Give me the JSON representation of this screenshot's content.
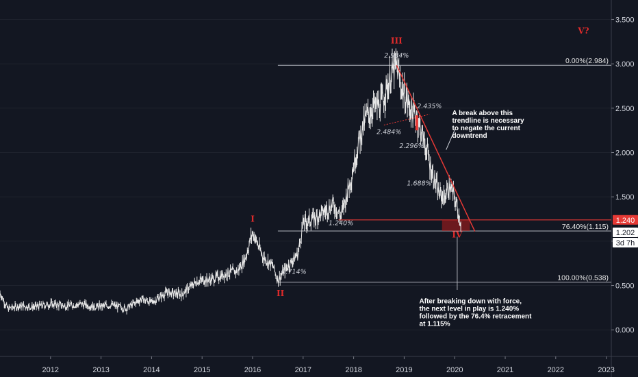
{
  "chart_data": {
    "type": "line",
    "x_range": [
      2011.0,
      2023.1
    ],
    "y_range": [
      -0.3,
      3.72
    ],
    "x_ticks": [
      {
        "x": 2012,
        "label": "2012"
      },
      {
        "x": 2013,
        "label": "2013"
      },
      {
        "x": 2014,
        "label": "2014"
      },
      {
        "x": 2015,
        "label": "2015"
      },
      {
        "x": 2016,
        "label": "2016"
      },
      {
        "x": 2017,
        "label": "2017"
      },
      {
        "x": 2018,
        "label": "2018"
      },
      {
        "x": 2019,
        "label": "2019"
      },
      {
        "x": 2020,
        "label": "2020"
      },
      {
        "x": 2021,
        "label": "2021"
      },
      {
        "x": 2022,
        "label": "2022"
      },
      {
        "x": 2023,
        "label": "2023"
      }
    ],
    "y_ticks": [
      {
        "y": 3.5,
        "label": "3.500"
      },
      {
        "y": 3.0,
        "label": "3.000"
      },
      {
        "y": 2.5,
        "label": "2.500"
      },
      {
        "y": 2.0,
        "label": "2.000"
      },
      {
        "y": 1.5,
        "label": "1.500"
      },
      {
        "y": 1.0,
        "label": "1.000"
      },
      {
        "y": 0.5,
        "label": "0.500"
      },
      {
        "y": 0.0,
        "label": "0.000"
      }
    ],
    "price_path": [
      [
        2011.0,
        0.42
      ],
      [
        2011.15,
        0.24
      ],
      [
        2011.4,
        0.27
      ],
      [
        2011.7,
        0.26
      ],
      [
        2012.0,
        0.29
      ],
      [
        2012.3,
        0.27
      ],
      [
        2012.6,
        0.29
      ],
      [
        2012.9,
        0.26
      ],
      [
        2013.2,
        0.28
      ],
      [
        2013.5,
        0.24
      ],
      [
        2013.8,
        0.35
      ],
      [
        2014.0,
        0.31
      ],
      [
        2014.3,
        0.42
      ],
      [
        2014.6,
        0.4
      ],
      [
        2014.9,
        0.55
      ],
      [
        2015.2,
        0.57
      ],
      [
        2015.5,
        0.64
      ],
      [
        2015.7,
        0.66
      ],
      [
        2015.85,
        0.8
      ],
      [
        2016.0,
        1.1
      ],
      [
        2016.2,
        0.83
      ],
      [
        2016.4,
        0.72
      ],
      [
        2016.5,
        0.56
      ],
      [
        2016.7,
        0.72
      ],
      [
        2016.9,
        0.86
      ],
      [
        2017.0,
        1.2
      ],
      [
        2017.3,
        1.28
      ],
      [
        2017.6,
        1.42
      ],
      [
        2017.75,
        1.28
      ],
      [
        2017.95,
        1.72
      ],
      [
        2018.1,
        2.12
      ],
      [
        2018.25,
        2.4
      ],
      [
        2018.4,
        2.51
      ],
      [
        2018.55,
        2.55
      ],
      [
        2018.75,
        2.88
      ],
      [
        2018.85,
        2.98
      ],
      [
        2018.95,
        2.74
      ],
      [
        2019.1,
        2.52
      ],
      [
        2019.25,
        2.38
      ],
      [
        2019.35,
        2.22
      ],
      [
        2019.45,
        2.02
      ],
      [
        2019.55,
        1.78
      ],
      [
        2019.7,
        1.52
      ],
      [
        2019.8,
        1.5
      ],
      [
        2019.9,
        1.62
      ],
      [
        2020.0,
        1.48
      ],
      [
        2020.05,
        1.38
      ],
      [
        2020.12,
        1.22
      ]
    ],
    "fib_levels": [
      {
        "y": 2.984,
        "label": "0.00%(2.984)"
      },
      {
        "y": 1.115,
        "label": "76.40%(1.115)"
      },
      {
        "y": 0.538,
        "label": "100.00%(0.538)"
      }
    ],
    "support_level": {
      "y": 1.24
    },
    "trendline": {
      "start": [
        2018.85,
        2.984
      ],
      "end": [
        2020.4,
        1.11
      ]
    },
    "dotted_line": {
      "start": [
        2018.6,
        2.31
      ],
      "end": [
        2019.5,
        2.43
      ]
    },
    "annotations": [
      {
        "x": 2018.85,
        "y": 3.07,
        "text": "2.984%"
      },
      {
        "x": 2019.5,
        "y": 2.5,
        "text": "2.435%"
      },
      {
        "x": 2018.7,
        "y": 2.21,
        "text": "2.484%"
      },
      {
        "x": 2019.15,
        "y": 2.05,
        "text": "2.296%"
      },
      {
        "x": 2019.3,
        "y": 1.63,
        "text": "1.688%"
      },
      {
        "x": 2017.75,
        "y": 1.18,
        "text": "1.240%"
      },
      {
        "x": 2016.82,
        "y": 0.63,
        "text": "0.714%"
      }
    ],
    "wave_labels": [
      {
        "x": 2016.0,
        "y": 1.22,
        "text": "I"
      },
      {
        "x": 2016.55,
        "y": 0.38,
        "text": "II"
      },
      {
        "x": 2018.85,
        "y": 3.23,
        "text": "III"
      },
      {
        "x": 2020.05,
        "y": 1.04,
        "text": "IV"
      },
      {
        "x": 2022.55,
        "y": 3.34,
        "text": "V?"
      }
    ],
    "notes": [
      {
        "x": 2019.95,
        "y": 2.42,
        "lines": [
          "A break above this",
          "trendline is necessary",
          "to negate the current",
          "downtrend"
        ]
      },
      {
        "x": 2019.3,
        "y": 0.3,
        "lines": [
          "After breaking down with force,",
          "the next level in play is 1.240%",
          "followed by the 76.4% retracement",
          "at 1.115%"
        ]
      }
    ],
    "price_labels": [
      {
        "y": 1.24,
        "text": "1.240",
        "color": "#e53935"
      },
      {
        "y": 1.115,
        "text": "1.202",
        "color": "#ffffff"
      }
    ],
    "countdown_label": "3d 7h",
    "colors": {
      "background": "#131722",
      "price": "#e6e6e6",
      "red": "#e53935",
      "level": "#b2b5be"
    }
  }
}
